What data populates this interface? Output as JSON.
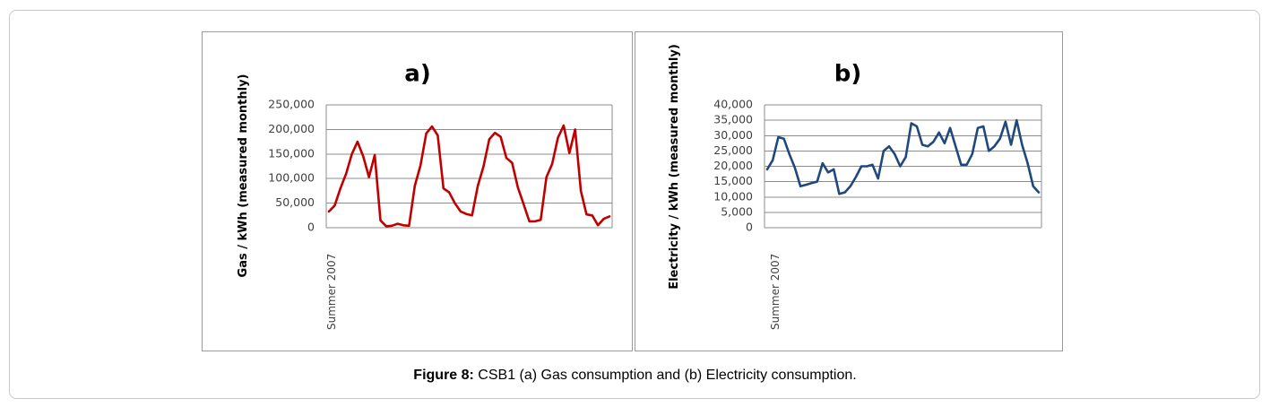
{
  "caption": {
    "label": "Figure 8:",
    "text": " CSB1 (a) Gas consumption and (b) Electricity consumption."
  },
  "chart_data": [
    {
      "type": "line",
      "title": "a)",
      "ylabel": "Gas / kWh (measured monthly)",
      "x_tick_labels": [
        "Summer 2007"
      ],
      "ylim": [
        0,
        250000
      ],
      "y_ticks": [
        "0",
        "50,000",
        "100,000",
        "150,000",
        "200,000",
        "250,000"
      ],
      "grid": "horizontal",
      "color": "#c00000",
      "series": [
        {
          "values": [
            33000,
            45000,
            80000,
            110000,
            150000,
            175000,
            145000,
            103000,
            148000,
            15000,
            3000,
            4000,
            8000,
            5000,
            4000,
            85000,
            127000,
            192000,
            206000,
            188000,
            80000,
            72000,
            50000,
            33000,
            28000,
            25000,
            85000,
            125000,
            180000,
            193000,
            185000,
            142000,
            132000,
            82000,
            48000,
            13000,
            13000,
            16000,
            103000,
            130000,
            183000,
            208000,
            152000,
            200000,
            75000,
            27000,
            25000,
            5000,
            18000,
            23000
          ]
        }
      ]
    },
    {
      "type": "line",
      "title": "b)",
      "ylabel": "Electricity / kWh (measured monthly)",
      "x_tick_labels": [
        "Summer 2007"
      ],
      "ylim": [
        0,
        40000
      ],
      "y_ticks": [
        "0",
        "5,000",
        "10,000",
        "15,000",
        "20,000",
        "25,000",
        "30,000",
        "35,000",
        "40,000"
      ],
      "grid": "horizontal",
      "color": "#1f497d",
      "series": [
        {
          "values": [
            19000,
            22000,
            29500,
            29000,
            24000,
            19500,
            13500,
            14000,
            14500,
            15000,
            21000,
            18000,
            19000,
            11000,
            11500,
            13500,
            16500,
            20000,
            20000,
            20500,
            16000,
            25000,
            26500,
            24000,
            20000,
            23000,
            34000,
            33000,
            27000,
            26500,
            28000,
            31000,
            27500,
            32500,
            26500,
            20500,
            20500,
            24000,
            32500,
            33000,
            25000,
            26500,
            29000,
            34500,
            27000,
            35000,
            27000,
            21000,
            13500,
            11500
          ]
        }
      ]
    }
  ]
}
